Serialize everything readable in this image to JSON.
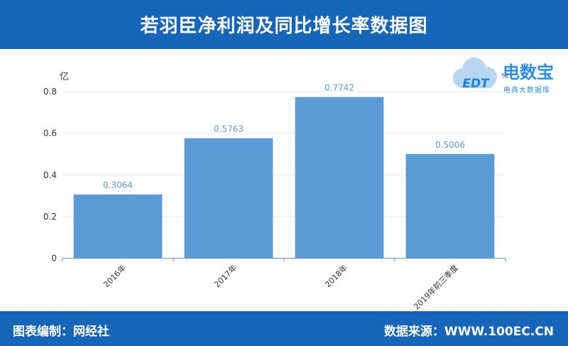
{
  "header": {
    "title": "若羽臣净利润及同比增长率数据图"
  },
  "footer": {
    "left": "图表编制：网经社",
    "right": "数据来源：WWW.100EC.CN"
  },
  "logo": {
    "brand": "电数宝",
    "tagline": "电商大数据库",
    "mark": "EDT"
  },
  "chart_data": {
    "type": "bar",
    "title": "若羽臣净利润及同比增长率数据图",
    "ylabel": "亿",
    "y2label": "%",
    "ylim": [
      0,
      0.8
    ],
    "yticks": [
      0,
      0.2,
      0.4,
      0.6,
      0.8
    ],
    "categories": [
      "2016年",
      "2017年",
      "2018年",
      "2019年前三季度"
    ],
    "values": [
      0.3064,
      0.5763,
      0.7742,
      0.5006
    ],
    "value_labels": [
      "0.3064",
      "0.5763",
      "0.7742",
      "0.5006"
    ],
    "bar_color": "#5b9bd5",
    "label_color": "#5b9bd5",
    "grid": true,
    "legend": "none"
  }
}
